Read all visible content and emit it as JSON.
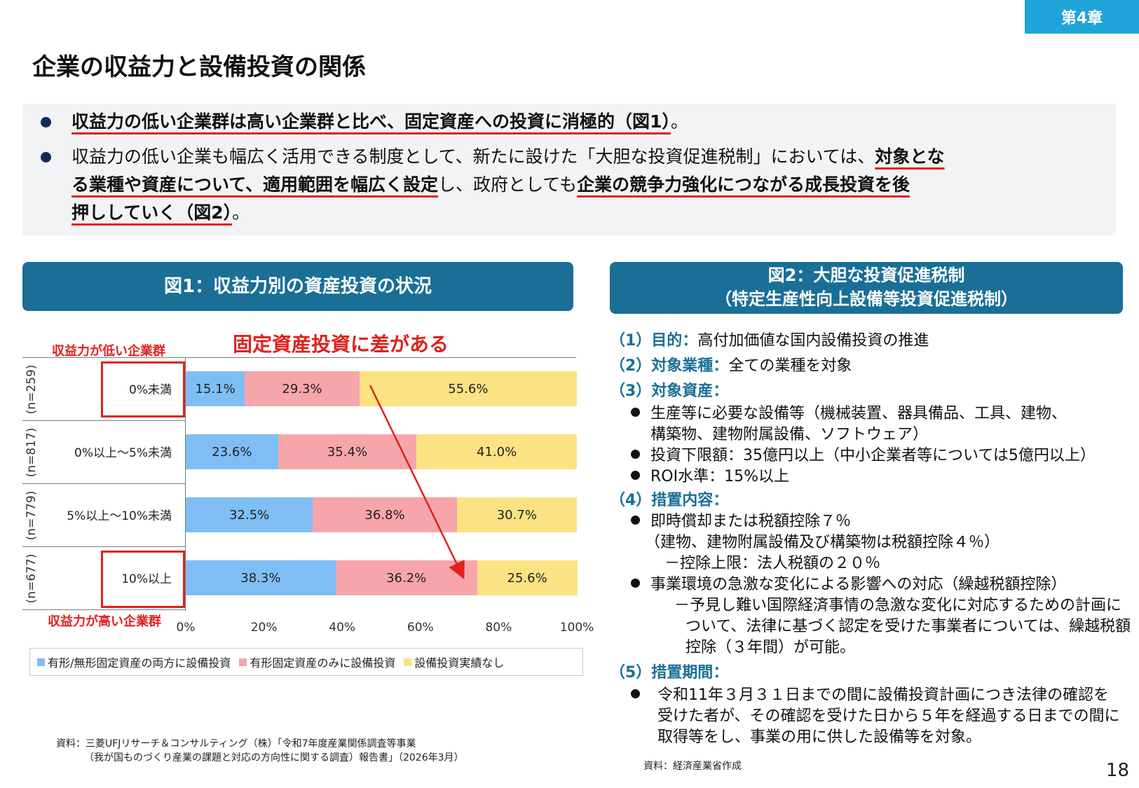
{
  "chapter": "第4章",
  "title": "企業の収益力と設備投資の関係",
  "summary": {
    "b1_under": "収益力の低い企業群は高い企業群と比べ、固定資産への投資に消極的（図1）",
    "b1_end": "。",
    "b2_l1_plain": "収益力の低い企業も幅広く活用できる制度として、新たに設けた「大胆な投資促進税制」においては、",
    "b2_l1_under": "対象とな",
    "b2_l2_under1": "る業種や資産について、適用範囲を幅広く設定",
    "b2_l2_plain": "し、政府としても",
    "b2_l2_under2": "企業の競争力強化につながる成長投資を後",
    "b2_l3_under": "押ししていく（図2）",
    "b2_l3_end": "。"
  },
  "fig1": {
    "header": "図1：収益力別の資産投資の状況",
    "callout": "固定資産投資に差がある",
    "low_label": "収益力が低い企業群",
    "high_label": "収益力が高い企業群",
    "source_l1": "資料：三菱UFJリサーチ＆コンサルティング（株）「令和7年度産業関係調査等事業",
    "source_l2": "（我が国ものづくり産業の課題と対応の方向性に関する調査）報告書」（2026年3月）"
  },
  "chart_data": {
    "type": "bar",
    "orientation": "horizontal",
    "stacked": true,
    "categories": [
      "0%未満",
      "0%以上～5%未満",
      "5%以上～10%未満",
      "10%以上"
    ],
    "n_labels": [
      "(n=259)",
      "(n=817)",
      "(n=779)",
      "(n=677)"
    ],
    "series": [
      {
        "name": "有形/無形固定資産の両方に設備投資",
        "values": [
          15.1,
          23.6,
          32.5,
          38.3
        ],
        "color": "#7fbef5"
      },
      {
        "name": "有形固定資産のみに設備投資",
        "values": [
          29.3,
          35.4,
          36.8,
          36.2
        ],
        "color": "#f6a6aa"
      },
      {
        "name": "設備投資実績なし",
        "values": [
          55.6,
          41.0,
          30.7,
          25.6
        ],
        "color": "#fbe283"
      }
    ],
    "value_labels": [
      [
        "15.1%",
        "29.3%",
        "55.6%"
      ],
      [
        "23.6%",
        "35.4%",
        "41.0%"
      ],
      [
        "32.5%",
        "36.8%",
        "30.7%"
      ],
      [
        "38.3%",
        "36.2%",
        "25.6%"
      ]
    ],
    "xticks": [
      "0%",
      "20%",
      "40%",
      "60%",
      "80%",
      "100%"
    ],
    "xlim": [
      0,
      100
    ],
    "legend": "bottom"
  },
  "fig2": {
    "header_l1": "図2：大胆な投資促進税制",
    "header_l2": "（特定生産性向上設備等投資促進税制）",
    "s1_head": "（1）目的：",
    "s1_text": "高付加価値な国内設備投資の推進",
    "s2_head": "（2）対象業種：",
    "s2_text": "全ての業種を対象",
    "s3_head": "（3）対象資産：",
    "s3_b1_l1": "生産等に必要な設備等（機械装置、器具備品、工具、建物、",
    "s3_b1_l2": "構築物、建物附属設備、ソフトウェア）",
    "s3_b2": "投資下限額：35億円以上（中小企業者等については5億円以上）",
    "s3_b3": "ROI水準：15%以上",
    "s4_head": "（4）措置内容：",
    "s4_b1_l1": "即時償却または税額控除７％",
    "s4_b1_l2": "（建物、建物附属設備及び構築物は税額控除４％）",
    "s4_b1_l3": "－控除上限：法人税額の２０％",
    "s4_b2_l1": "事業環境の急激な変化による影響への対応（繰越税額控除）",
    "s4_b2_l2": "－予見し難い国際経済事情の急激な変化に対応するための計画に",
    "s4_b2_l3": "ついて、法律に基づく認定を受けた事業者については、繰越税額",
    "s4_b2_l4": "控除（３年間）が可能。",
    "s5_head": "（5）措置期間：",
    "s5_b1_l1": "令和11年３月３１日までの間に設備投資計画につき法律の確認を",
    "s5_b1_l2": "受けた者が、その確認を受けた日から５年を経過する日までの間に",
    "s5_b1_l3": "取得等をし、事業の用に供した設備等を対象。",
    "source": "資料：経済産業省作成"
  },
  "page_number": "18"
}
